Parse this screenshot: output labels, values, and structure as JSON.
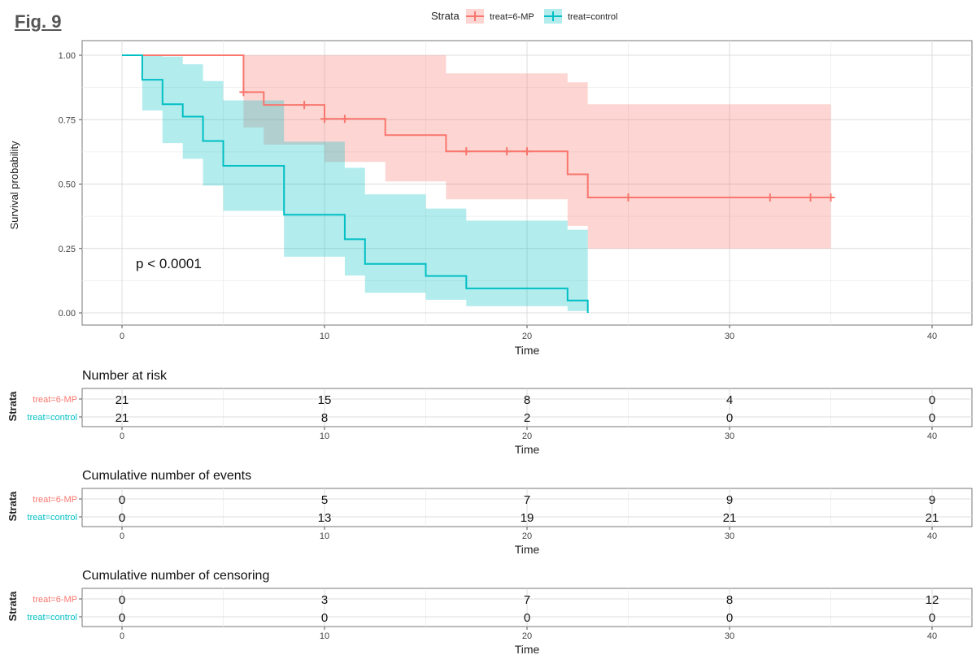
{
  "figure_label": "Fig. 9",
  "colors": {
    "sixmp": "#F8766D",
    "control": "#00BFC4",
    "sixmp_band": "#F8766D",
    "control_band": "#00BFC4"
  },
  "legend": {
    "title": "Strata",
    "entries": [
      "treat=6-MP",
      "treat=control"
    ]
  },
  "chart_data": [
    {
      "type": "line",
      "subtype": "kaplan-meier",
      "title": "",
      "xlabel": "Time",
      "ylabel": "Survival probability",
      "xlim": [
        0,
        40
      ],
      "ylim": [
        0,
        1
      ],
      "xticks": [
        0,
        10,
        20,
        30,
        40
      ],
      "yticks": [
        0,
        0.25,
        0.5,
        0.75,
        1.0
      ],
      "ytick_labels": [
        "0.00",
        "0.25",
        "0.50",
        "0.75",
        "1.00"
      ],
      "annotation": "p < 0.0001",
      "series": [
        {
          "name": "treat=6-MP",
          "steps": [
            [
              0,
              1.0
            ],
            [
              6,
              0.857
            ],
            [
              7,
              0.807
            ],
            [
              10,
              0.753
            ],
            [
              13,
              0.69
            ],
            [
              16,
              0.627
            ],
            [
              22,
              0.538
            ],
            [
              23,
              0.448
            ],
            [
              35,
              0.448
            ]
          ],
          "lower": [
            [
              0,
              1.0
            ],
            [
              6,
              0.72
            ],
            [
              7,
              0.653
            ],
            [
              10,
              0.586
            ],
            [
              13,
              0.51
            ],
            [
              16,
              0.441
            ],
            [
              22,
              0.338
            ],
            [
              23,
              0.25
            ],
            [
              35,
              0.25
            ]
          ],
          "upper": [
            [
              0,
              1.0
            ],
            [
              6,
              1.0
            ],
            [
              7,
              1.0
            ],
            [
              10,
              1.0
            ],
            [
              13,
              1.0
            ],
            [
              16,
              0.93
            ],
            [
              22,
              0.895
            ],
            [
              23,
              0.81
            ],
            [
              35,
              0.81
            ]
          ],
          "censor_times": [
            6,
            9,
            10,
            11,
            17,
            19,
            20,
            25,
            32,
            34,
            35
          ]
        },
        {
          "name": "treat=control",
          "steps": [
            [
              0,
              1.0
            ],
            [
              1,
              0.905
            ],
            [
              2,
              0.81
            ],
            [
              3,
              0.762
            ],
            [
              4,
              0.667
            ],
            [
              5,
              0.571
            ],
            [
              8,
              0.381
            ],
            [
              11,
              0.286
            ],
            [
              12,
              0.19
            ],
            [
              15,
              0.143
            ],
            [
              17,
              0.095
            ],
            [
              22,
              0.048
            ],
            [
              23,
              0.0
            ]
          ],
          "lower": [
            [
              0,
              1.0
            ],
            [
              1,
              0.786
            ],
            [
              2,
              0.659
            ],
            [
              3,
              0.598
            ],
            [
              4,
              0.494
            ],
            [
              5,
              0.396
            ],
            [
              8,
              0.218
            ],
            [
              11,
              0.145
            ],
            [
              12,
              0.078
            ],
            [
              15,
              0.051
            ],
            [
              17,
              0.026
            ],
            [
              22,
              0.007
            ],
            [
              23,
              0.0
            ]
          ],
          "upper": [
            [
              0,
              1.0
            ],
            [
              1,
              1.0
            ],
            [
              2,
              0.995
            ],
            [
              3,
              0.965
            ],
            [
              4,
              0.9
            ],
            [
              5,
              0.825
            ],
            [
              8,
              0.665
            ],
            [
              11,
              0.563
            ],
            [
              12,
              0.46
            ],
            [
              15,
              0.405
            ],
            [
              17,
              0.358
            ],
            [
              22,
              0.323
            ],
            [
              23,
              0.0
            ]
          ],
          "censor_times": []
        }
      ]
    },
    {
      "type": "table",
      "title": "Number at risk",
      "row_axis_label": "Strata",
      "xlabel": "Time",
      "time_points": [
        0,
        10,
        20,
        30,
        40
      ],
      "rows": [
        {
          "name": "treat=6-MP",
          "values": [
            21,
            15,
            8,
            4,
            0
          ]
        },
        {
          "name": "treat=control",
          "values": [
            21,
            8,
            2,
            0,
            0
          ]
        }
      ]
    },
    {
      "type": "table",
      "title": "Cumulative number of events",
      "row_axis_label": "Strata",
      "xlabel": "Time",
      "time_points": [
        0,
        10,
        20,
        30,
        40
      ],
      "rows": [
        {
          "name": "treat=6-MP",
          "values": [
            0,
            5,
            7,
            9,
            9
          ]
        },
        {
          "name": "treat=control",
          "values": [
            0,
            13,
            19,
            21,
            21
          ]
        }
      ]
    },
    {
      "type": "table",
      "title": "Cumulative number of censoring",
      "row_axis_label": "Strata",
      "xlabel": "Time",
      "time_points": [
        0,
        10,
        20,
        30,
        40
      ],
      "rows": [
        {
          "name": "treat=6-MP",
          "values": [
            0,
            3,
            7,
            8,
            12
          ]
        },
        {
          "name": "treat=control",
          "values": [
            0,
            0,
            0,
            0,
            0
          ]
        }
      ]
    }
  ]
}
